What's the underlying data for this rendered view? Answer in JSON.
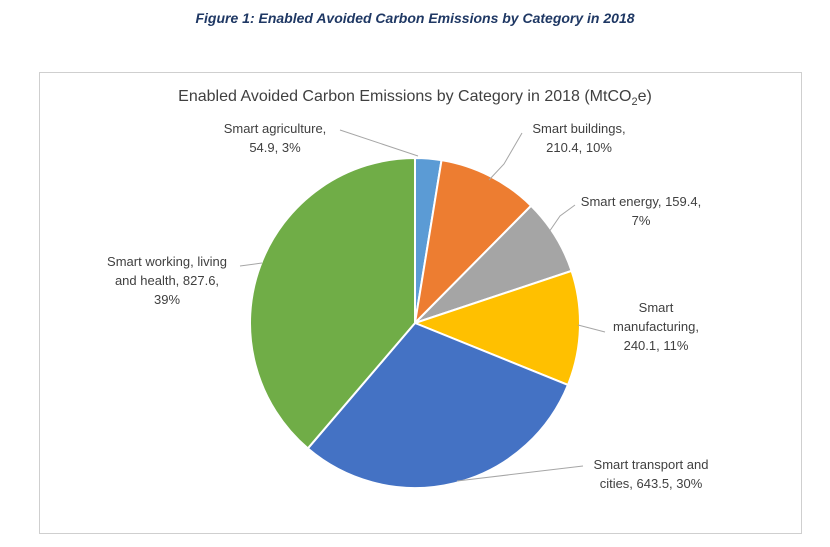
{
  "figure_caption": "Figure 1: Enabled Avoided Carbon Emissions by Category in 2018",
  "chart_data": {
    "type": "pie",
    "title_main": "Enabled Avoided Carbon Emissions by Category in 2018 (MtCO",
    "title_sub": "2",
    "title_end": "e)",
    "slices": [
      {
        "name": "Smart agriculture",
        "value": 54.9,
        "percent": 3,
        "color": "#5B9BD5",
        "label_lines": [
          "Smart agriculture,",
          "54.9, 3%"
        ]
      },
      {
        "name": "Smart buildings",
        "value": 210.4,
        "percent": 10,
        "color": "#ED7D31",
        "label_lines": [
          "Smart buildings,",
          "210.4, 10%"
        ]
      },
      {
        "name": "Smart energy",
        "value": 159.4,
        "percent": 7,
        "color": "#A5A5A5",
        "label_lines": [
          "Smart energy, 159.4,",
          "7%"
        ]
      },
      {
        "name": "Smart manufacturing",
        "value": 240.1,
        "percent": 11,
        "color": "#FFC000",
        "label_lines": [
          "Smart",
          "manufacturing,",
          "240.1, 11%"
        ]
      },
      {
        "name": "Smart transport and cities",
        "value": 643.5,
        "percent": 30,
        "color": "#4472C4",
        "label_lines": [
          "Smart transport and",
          "cities, 643.5, 30%"
        ]
      },
      {
        "name": "Smart working, living and health",
        "value": 827.6,
        "percent": 39,
        "color": "#70AD47",
        "label_lines": [
          "Smart working, living",
          "and health, 827.6,",
          "39%"
        ]
      }
    ]
  }
}
